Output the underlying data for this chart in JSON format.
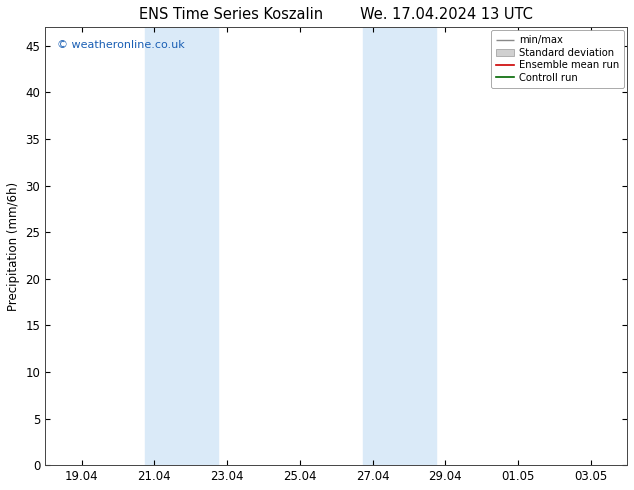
{
  "title_left": "ENS Time Series Koszalin",
  "title_right": "We. 17.04.2024 13 UTC",
  "ylabel": "Precipitation (mm/6h)",
  "ylim": [
    0,
    47
  ],
  "yticks": [
    0,
    5,
    10,
    15,
    20,
    25,
    30,
    35,
    40,
    45
  ],
  "xlim": [
    0,
    16
  ],
  "x_tick_labels": [
    "19.04",
    "21.04",
    "23.04",
    "25.04",
    "27.04",
    "29.04",
    "01.05",
    "03.05"
  ],
  "x_tick_positions": [
    1,
    3,
    5,
    7,
    9,
    11,
    13,
    15
  ],
  "shaded_regions": [
    {
      "xmin": 2.75,
      "xmax": 4.75,
      "color": "#daeaf8"
    },
    {
      "xmin": 8.75,
      "xmax": 10.75,
      "color": "#daeaf8"
    }
  ],
  "legend_items": [
    {
      "label": "min/max",
      "color": "#aaaaaa",
      "type": "errorbar"
    },
    {
      "label": "Standard deviation",
      "color": "#cccccc",
      "type": "bar"
    },
    {
      "label": "Ensemble mean run",
      "color": "#ff0000",
      "type": "line"
    },
    {
      "label": "Controll run",
      "color": "#008000",
      "type": "line"
    }
  ],
  "watermark": "© weatheronline.co.uk",
  "watermark_color": "#1a5fb4",
  "bg_color": "#ffffff",
  "plot_bg_color": "#ffffff",
  "border_color": "#444444",
  "font_size": 8.5,
  "title_font_size": 10.5
}
